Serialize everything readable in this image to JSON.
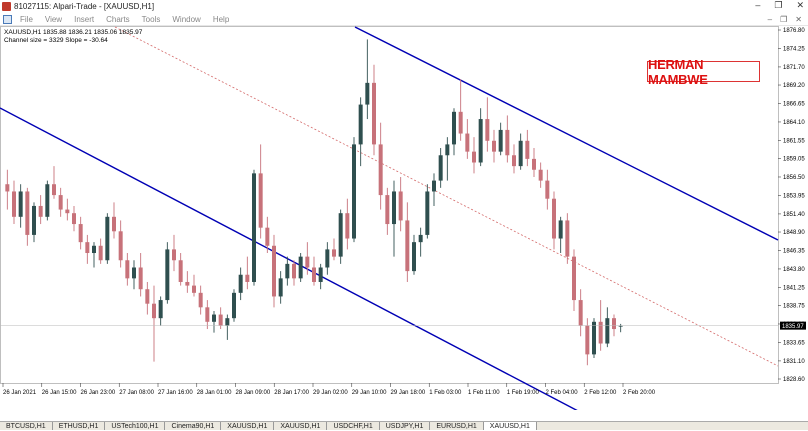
{
  "window": {
    "title": "81027115: Alpari-Trade - [XAUUSD,H1]",
    "controls": [
      "–",
      "❐",
      "✕"
    ]
  },
  "menu": {
    "items": [
      "File",
      "View",
      "Insert",
      "Charts",
      "Tools",
      "Window",
      "Help"
    ],
    "window_controls": [
      "–",
      "❐",
      "✕"
    ]
  },
  "chart_info": {
    "line1": "XAUUSD,H1  1835.88 1836.21 1835.06 1835.97",
    "line2": "Channel size = 3329 Slope = -30.64"
  },
  "watermark": "HERMAN MAMBWE",
  "colors": {
    "bull": "#2f4f4f",
    "bear": "#c7727a",
    "channel": "#0000b4",
    "midline": "#d46a6a",
    "price_tag": "#000000"
  },
  "chart_data": {
    "type": "candlestick",
    "symbol": "XAUUSD",
    "timeframe": "H1",
    "current_price": "1835.97",
    "y_ticks": [
      "1876.80",
      "1874.25",
      "1871.70",
      "1869.20",
      "1866.65",
      "1864.10",
      "1861.55",
      "1859.05",
      "1856.50",
      "1853.95",
      "1851.40",
      "1848.90",
      "1846.35",
      "1843.80",
      "1841.25",
      "1838.75",
      "1836.20",
      "1833.65",
      "1831.10",
      "1828.60"
    ],
    "ylim": [
      1828.6,
      1876.8
    ],
    "x_labels": [
      "26 Jan 2021",
      "26 Jan 15:00",
      "26 Jan 23:00",
      "27 Jan 08:00",
      "27 Jan 16:00",
      "28 Jan 01:00",
      "28 Jan 09:00",
      "28 Jan 17:00",
      "29 Jan 02:00",
      "29 Jan 10:00",
      "29 Jan 18:00",
      "1 Feb 03:00",
      "1 Feb 11:00",
      "1 Feb 19:00",
      "2 Feb 04:00",
      "2 Feb 12:00",
      "2 Feb 20:00"
    ],
    "candles": [
      {
        "o": 1855.5,
        "h": 1857.5,
        "l": 1852.0,
        "c": 1854.5
      },
      {
        "o": 1854.5,
        "h": 1856.0,
        "l": 1850.0,
        "c": 1851.0
      },
      {
        "o": 1851.0,
        "h": 1855.5,
        "l": 1849.5,
        "c": 1854.5
      },
      {
        "o": 1854.5,
        "h": 1855.0,
        "l": 1847.0,
        "c": 1848.5
      },
      {
        "o": 1848.5,
        "h": 1853.0,
        "l": 1847.5,
        "c": 1852.5
      },
      {
        "o": 1852.5,
        "h": 1854.0,
        "l": 1850.0,
        "c": 1851.0
      },
      {
        "o": 1851.0,
        "h": 1856.0,
        "l": 1850.5,
        "c": 1855.5
      },
      {
        "o": 1855.5,
        "h": 1858.0,
        "l": 1853.5,
        "c": 1854.0
      },
      {
        "o": 1854.0,
        "h": 1855.0,
        "l": 1851.0,
        "c": 1852.0
      },
      {
        "o": 1852.0,
        "h": 1853.5,
        "l": 1850.5,
        "c": 1851.5
      },
      {
        "o": 1851.5,
        "h": 1852.5,
        "l": 1849.0,
        "c": 1850.0
      },
      {
        "o": 1850.0,
        "h": 1851.0,
        "l": 1846.5,
        "c": 1847.5
      },
      {
        "o": 1847.5,
        "h": 1848.5,
        "l": 1844.5,
        "c": 1846.0
      },
      {
        "o": 1846.0,
        "h": 1847.5,
        "l": 1844.0,
        "c": 1847.0
      },
      {
        "o": 1847.0,
        "h": 1848.0,
        "l": 1844.5,
        "c": 1845.0
      },
      {
        "o": 1845.0,
        "h": 1851.5,
        "l": 1844.5,
        "c": 1851.0
      },
      {
        "o": 1851.0,
        "h": 1853.0,
        "l": 1848.0,
        "c": 1849.0
      },
      {
        "o": 1849.0,
        "h": 1850.5,
        "l": 1844.0,
        "c": 1845.0
      },
      {
        "o": 1845.0,
        "h": 1846.0,
        "l": 1841.5,
        "c": 1842.5
      },
      {
        "o": 1842.5,
        "h": 1845.0,
        "l": 1841.0,
        "c": 1844.0
      },
      {
        "o": 1844.0,
        "h": 1846.0,
        "l": 1840.0,
        "c": 1841.0
      },
      {
        "o": 1841.0,
        "h": 1842.0,
        "l": 1837.5,
        "c": 1839.0
      },
      {
        "o": 1839.0,
        "h": 1841.5,
        "l": 1831.0,
        "c": 1837.0
      },
      {
        "o": 1837.0,
        "h": 1840.0,
        "l": 1836.0,
        "c": 1839.5
      },
      {
        "o": 1839.5,
        "h": 1847.5,
        "l": 1839.0,
        "c": 1846.5
      },
      {
        "o": 1846.5,
        "h": 1848.5,
        "l": 1843.5,
        "c": 1845.0
      },
      {
        "o": 1845.0,
        "h": 1846.0,
        "l": 1841.5,
        "c": 1842.0
      },
      {
        "o": 1842.0,
        "h": 1843.5,
        "l": 1840.5,
        "c": 1841.5
      },
      {
        "o": 1841.5,
        "h": 1843.0,
        "l": 1840.0,
        "c": 1840.5
      },
      {
        "o": 1840.5,
        "h": 1841.5,
        "l": 1837.5,
        "c": 1838.5
      },
      {
        "o": 1838.5,
        "h": 1839.5,
        "l": 1835.5,
        "c": 1836.5
      },
      {
        "o": 1836.5,
        "h": 1838.0,
        "l": 1835.0,
        "c": 1837.5
      },
      {
        "o": 1837.5,
        "h": 1838.5,
        "l": 1835.5,
        "c": 1836.0
      },
      {
        "o": 1836.0,
        "h": 1837.5,
        "l": 1834.0,
        "c": 1837.0
      },
      {
        "o": 1837.0,
        "h": 1841.0,
        "l": 1836.5,
        "c": 1840.5
      },
      {
        "o": 1840.5,
        "h": 1844.0,
        "l": 1839.5,
        "c": 1843.0
      },
      {
        "o": 1843.0,
        "h": 1845.5,
        "l": 1841.0,
        "c": 1842.0
      },
      {
        "o": 1842.0,
        "h": 1857.5,
        "l": 1841.5,
        "c": 1857.0
      },
      {
        "o": 1857.0,
        "h": 1861.0,
        "l": 1848.0,
        "c": 1849.5
      },
      {
        "o": 1849.5,
        "h": 1851.0,
        "l": 1846.0,
        "c": 1847.0
      },
      {
        "o": 1847.0,
        "h": 1848.5,
        "l": 1838.5,
        "c": 1840.0
      },
      {
        "o": 1840.0,
        "h": 1843.5,
        "l": 1839.0,
        "c": 1842.5
      },
      {
        "o": 1842.5,
        "h": 1845.5,
        "l": 1841.5,
        "c": 1844.5
      },
      {
        "o": 1844.5,
        "h": 1845.0,
        "l": 1841.5,
        "c": 1842.5
      },
      {
        "o": 1842.5,
        "h": 1846.0,
        "l": 1842.0,
        "c": 1845.5
      },
      {
        "o": 1845.5,
        "h": 1847.5,
        "l": 1843.0,
        "c": 1844.0
      },
      {
        "o": 1844.0,
        "h": 1845.5,
        "l": 1841.5,
        "c": 1842.0
      },
      {
        "o": 1842.0,
        "h": 1844.5,
        "l": 1841.0,
        "c": 1844.0
      },
      {
        "o": 1844.0,
        "h": 1847.5,
        "l": 1843.0,
        "c": 1846.5
      },
      {
        "o": 1846.5,
        "h": 1848.0,
        "l": 1845.0,
        "c": 1845.5
      },
      {
        "o": 1845.5,
        "h": 1852.0,
        "l": 1844.5,
        "c": 1851.5
      },
      {
        "o": 1851.5,
        "h": 1853.5,
        "l": 1846.5,
        "c": 1848.0
      },
      {
        "o": 1848.0,
        "h": 1862.0,
        "l": 1847.5,
        "c": 1861.0
      },
      {
        "o": 1861.0,
        "h": 1867.5,
        "l": 1858.0,
        "c": 1866.5
      },
      {
        "o": 1866.5,
        "h": 1875.5,
        "l": 1864.5,
        "c": 1869.5
      },
      {
        "o": 1869.5,
        "h": 1872.0,
        "l": 1859.5,
        "c": 1861.0
      },
      {
        "o": 1861.0,
        "h": 1864.0,
        "l": 1852.0,
        "c": 1854.0
      },
      {
        "o": 1854.0,
        "h": 1855.0,
        "l": 1848.5,
        "c": 1850.0
      },
      {
        "o": 1850.0,
        "h": 1856.0,
        "l": 1845.5,
        "c": 1854.5
      },
      {
        "o": 1854.5,
        "h": 1856.5,
        "l": 1849.0,
        "c": 1850.5
      },
      {
        "o": 1850.5,
        "h": 1853.0,
        "l": 1842.0,
        "c": 1843.5
      },
      {
        "o": 1843.5,
        "h": 1848.5,
        "l": 1843.0,
        "c": 1847.5
      },
      {
        "o": 1847.5,
        "h": 1849.5,
        "l": 1845.5,
        "c": 1848.5
      },
      {
        "o": 1848.5,
        "h": 1855.5,
        "l": 1848.0,
        "c": 1854.5
      },
      {
        "o": 1854.5,
        "h": 1857.0,
        "l": 1852.5,
        "c": 1856.0
      },
      {
        "o": 1856.0,
        "h": 1860.5,
        "l": 1855.0,
        "c": 1859.5
      },
      {
        "o": 1859.5,
        "h": 1862.0,
        "l": 1856.0,
        "c": 1861.0
      },
      {
        "o": 1861.0,
        "h": 1866.0,
        "l": 1859.5,
        "c": 1865.5
      },
      {
        "o": 1865.5,
        "h": 1870.0,
        "l": 1861.5,
        "c": 1862.5
      },
      {
        "o": 1862.5,
        "h": 1864.5,
        "l": 1859.0,
        "c": 1860.0
      },
      {
        "o": 1860.0,
        "h": 1862.0,
        "l": 1857.0,
        "c": 1858.5
      },
      {
        "o": 1858.5,
        "h": 1866.0,
        "l": 1858.0,
        "c": 1864.5
      },
      {
        "o": 1864.5,
        "h": 1867.5,
        "l": 1860.0,
        "c": 1861.5
      },
      {
        "o": 1861.5,
        "h": 1863.0,
        "l": 1858.5,
        "c": 1860.0
      },
      {
        "o": 1860.0,
        "h": 1864.0,
        "l": 1859.5,
        "c": 1863.0
      },
      {
        "o": 1863.0,
        "h": 1865.0,
        "l": 1858.5,
        "c": 1859.5
      },
      {
        "o": 1859.5,
        "h": 1861.0,
        "l": 1857.0,
        "c": 1858.0
      },
      {
        "o": 1858.0,
        "h": 1862.5,
        "l": 1857.5,
        "c": 1861.5
      },
      {
        "o": 1861.5,
        "h": 1863.0,
        "l": 1858.0,
        "c": 1859.0
      },
      {
        "o": 1859.0,
        "h": 1860.5,
        "l": 1856.5,
        "c": 1857.5
      },
      {
        "o": 1857.5,
        "h": 1858.5,
        "l": 1855.0,
        "c": 1856.0
      },
      {
        "o": 1856.0,
        "h": 1857.5,
        "l": 1852.0,
        "c": 1853.5
      },
      {
        "o": 1853.5,
        "h": 1854.5,
        "l": 1846.5,
        "c": 1848.0
      },
      {
        "o": 1848.0,
        "h": 1851.0,
        "l": 1846.0,
        "c": 1850.5
      },
      {
        "o": 1850.5,
        "h": 1851.5,
        "l": 1844.5,
        "c": 1845.5
      },
      {
        "o": 1845.5,
        "h": 1846.5,
        "l": 1838.0,
        "c": 1839.5
      },
      {
        "o": 1839.5,
        "h": 1841.0,
        "l": 1834.5,
        "c": 1836.0
      },
      {
        "o": 1836.0,
        "h": 1837.0,
        "l": 1830.5,
        "c": 1832.0
      },
      {
        "o": 1832.0,
        "h": 1837.0,
        "l": 1831.5,
        "c": 1836.5
      },
      {
        "o": 1836.5,
        "h": 1839.5,
        "l": 1832.5,
        "c": 1833.5
      },
      {
        "o": 1833.5,
        "h": 1838.5,
        "l": 1833.0,
        "c": 1837.0
      },
      {
        "o": 1837.0,
        "h": 1837.5,
        "l": 1834.5,
        "c": 1835.5
      },
      {
        "o": 1835.88,
        "h": 1836.21,
        "l": 1835.06,
        "c": 1835.97
      }
    ]
  },
  "tabs": [
    "BTCUSD,H1",
    "ETHUSD,H1",
    "USTech100,H1",
    "Cinema90,H1",
    "XAUUSD,H1",
    "XAUUSD,H1",
    "USDCHF,H1",
    "USDJPY,H1",
    "EURUSD,H1",
    "XAUUSD,H1"
  ]
}
